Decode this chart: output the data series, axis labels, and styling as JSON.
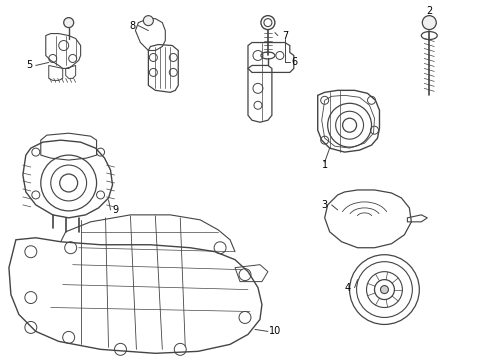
{
  "background_color": "#ffffff",
  "line_color": "#444444",
  "label_color": "#000000",
  "figsize": [
    4.9,
    3.6
  ],
  "dpi": 100
}
